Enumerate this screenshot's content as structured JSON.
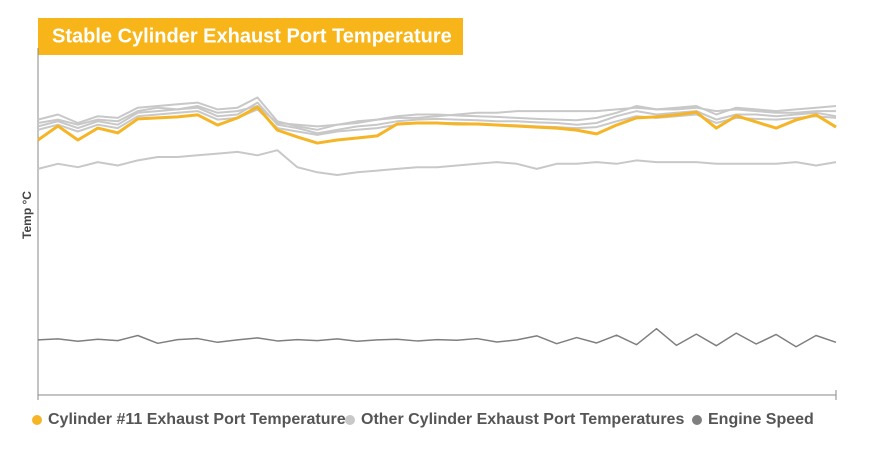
{
  "chart_data": {
    "type": "line",
    "title": "Stable Cylinder Exhaust Port Temperature",
    "y_label": "Temp °C",
    "xlim": [
      0,
      40
    ],
    "ylim": [
      0,
      100
    ],
    "x": [
      0,
      1,
      2,
      3,
      4,
      5,
      6,
      7,
      8,
      9,
      10,
      11,
      12,
      13,
      14,
      15,
      16,
      17,
      18,
      19,
      20,
      21,
      22,
      23,
      24,
      25,
      26,
      27,
      28,
      29,
      30,
      31,
      32,
      33,
      34,
      35,
      36,
      37,
      38,
      39,
      40
    ],
    "series": [
      {
        "name": "Cylinder #11 Exhaust Port Temperature",
        "color": "#f5b526",
        "values": [
          75,
          79.1,
          75,
          78.5,
          77.1,
          81.2,
          81.5,
          81.8,
          82.4,
          79.4,
          81.5,
          84.7,
          77.9,
          75.9,
          74.1,
          75,
          75.6,
          76.2,
          79.7,
          80,
          80,
          79.7,
          79.7,
          79.4,
          79.1,
          78.8,
          78.5,
          77.9,
          76.8,
          79.4,
          81.5,
          81.8,
          82.4,
          83.2,
          78.5,
          82.1,
          80.3,
          78.5,
          80.9,
          82.4,
          78.8
        ]
      },
      {
        "name": "Other Cylinder Exhaust Port Temperatures",
        "color": "#c8c8c8",
        "lines": [
          [
            81,
            82.5,
            80,
            82,
            81.5,
            84.5,
            85,
            85.5,
            86,
            84,
            84.5,
            87.5,
            80.5,
            79,
            78,
            79.5,
            80.5,
            81,
            82,
            82.5,
            82.5,
            82.2,
            82,
            81.8,
            81.5,
            81.2,
            81,
            80.8,
            81.5,
            83,
            85,
            84,
            84.5,
            85,
            82.5,
            84.5,
            84,
            83.5,
            84,
            84.5,
            85
          ],
          [
            79,
            80.5,
            78.5,
            80.5,
            79.5,
            83,
            83.5,
            84,
            84.5,
            82,
            82.5,
            86,
            79.5,
            78.5,
            77,
            78,
            79,
            79.5,
            80.5,
            81,
            81.2,
            81,
            80.8,
            80.5,
            80.5,
            80.2,
            80,
            79.5,
            80,
            82,
            83.5,
            82.5,
            83,
            83.5,
            81,
            82.5,
            82.5,
            82,
            82.5,
            83,
            82
          ],
          [
            80,
            81,
            79.5,
            81,
            80.5,
            83.5,
            84.5,
            84,
            85,
            83,
            83.5,
            85,
            80,
            79.5,
            79,
            79.5,
            80,
            81,
            81.5,
            81.5,
            82,
            82.5,
            83,
            83,
            83.5,
            83.5,
            83.5,
            83.5,
            83.5,
            84,
            84.5,
            84,
            84,
            84.5,
            83.5,
            84,
            83.5,
            83,
            83,
            83.5,
            83.5
          ],
          [
            78,
            79.5,
            77.5,
            79.5,
            78.5,
            82,
            82.5,
            83,
            83.5,
            81,
            81.5,
            84,
            78.5,
            77.5,
            76.5,
            77.5,
            78,
            78.5,
            79.5,
            80,
            80,
            80,
            79.8,
            79.5,
            79.3,
            79,
            78.8,
            78.5,
            78.8,
            80.5,
            82,
            81.5,
            82,
            82.5,
            80,
            81.5,
            81.2,
            81,
            81.5,
            82,
            81.5
          ],
          [
            66.5,
            68,
            67,
            68.5,
            67.5,
            69,
            70,
            70,
            70.5,
            71,
            71.5,
            70.5,
            72,
            67,
            65.5,
            64.7,
            65.5,
            66,
            66.5,
            67,
            67,
            67.5,
            68,
            68.5,
            68,
            66.5,
            68,
            68,
            68.5,
            68,
            69,
            68.5,
            68.5,
            68.5,
            68,
            68,
            68,
            68,
            68.5,
            67.5,
            68.5
          ]
        ]
      },
      {
        "name": "Engine Speed",
        "color": "#7f7f7f",
        "values": [
          16.2,
          16.5,
          15.8,
          16.4,
          16,
          17.5,
          15.2,
          16.3,
          16.6,
          15.5,
          16.2,
          16.8,
          15.9,
          16.3,
          16,
          16.5,
          15.8,
          16.2,
          16.4,
          15.9,
          16.3,
          16.1,
          16.6,
          15.6,
          16.2,
          17.4,
          15.1,
          16.9,
          15.3,
          17.6,
          14.8,
          19.5,
          14.6,
          17.9,
          14.5,
          18.2,
          15,
          17.8,
          14.2,
          17.5,
          15.5
        ]
      }
    ]
  }
}
